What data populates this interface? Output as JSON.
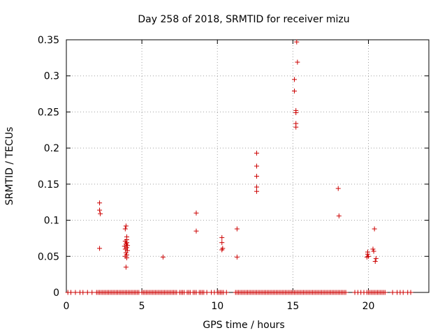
{
  "chart_data": {
    "type": "scatter",
    "title": "Day 258 of 2018, SRMTID for receiver mizu",
    "xlabel": "GPS time / hours",
    "ylabel": "SRMTID / TECUs",
    "xlim": [
      0,
      24
    ],
    "ylim": [
      0,
      0.35
    ],
    "xticks": [
      0,
      5,
      10,
      15,
      20
    ],
    "xtick_labels": [
      "0",
      "5",
      "10",
      "15",
      "20"
    ],
    "yticks": [
      0,
      0.05,
      0.1,
      0.15,
      0.2,
      0.25,
      0.3,
      0.35
    ],
    "ytick_labels": [
      "0",
      "0.05",
      "0.1",
      "0.15",
      "0.2",
      "0.25",
      "0.3",
      "0.35"
    ],
    "grid": true,
    "marker": "+",
    "color": "#cc0000",
    "series": [
      {
        "name": "SRMTID",
        "points": [
          [
            2.2,
            0.124
          ],
          [
            2.2,
            0.114
          ],
          [
            2.25,
            0.109
          ],
          [
            2.2,
            0.061
          ],
          [
            3.95,
            0.092
          ],
          [
            3.9,
            0.088
          ],
          [
            4.0,
            0.077
          ],
          [
            4.0,
            0.073
          ],
          [
            3.9,
            0.071
          ],
          [
            4.0,
            0.069
          ],
          [
            3.95,
            0.067
          ],
          [
            4.05,
            0.065
          ],
          [
            3.85,
            0.064
          ],
          [
            4.0,
            0.062
          ],
          [
            3.9,
            0.06
          ],
          [
            4.05,
            0.058
          ],
          [
            3.95,
            0.055
          ],
          [
            4.0,
            0.052
          ],
          [
            3.9,
            0.05
          ],
          [
            4.0,
            0.048
          ],
          [
            3.95,
            0.035
          ],
          [
            6.4,
            0.049
          ],
          [
            8.6,
            0.11
          ],
          [
            8.6,
            0.085
          ],
          [
            10.3,
            0.076
          ],
          [
            10.3,
            0.069
          ],
          [
            10.35,
            0.061
          ],
          [
            10.3,
            0.059
          ],
          [
            11.3,
            0.088
          ],
          [
            11.3,
            0.049
          ],
          [
            12.6,
            0.193
          ],
          [
            12.6,
            0.175
          ],
          [
            12.6,
            0.161
          ],
          [
            12.6,
            0.146
          ],
          [
            12.6,
            0.14
          ],
          [
            15.25,
            0.347
          ],
          [
            15.3,
            0.319
          ],
          [
            15.1,
            0.295
          ],
          [
            15.1,
            0.279
          ],
          [
            15.2,
            0.252
          ],
          [
            15.2,
            0.249
          ],
          [
            15.2,
            0.234
          ],
          [
            15.2,
            0.229
          ],
          [
            18.0,
            0.144
          ],
          [
            18.05,
            0.106
          ],
          [
            19.95,
            0.056
          ],
          [
            19.95,
            0.053
          ],
          [
            20.0,
            0.05
          ],
          [
            19.9,
            0.049
          ],
          [
            20.4,
            0.088
          ],
          [
            20.3,
            0.06
          ],
          [
            20.35,
            0.057
          ],
          [
            20.5,
            0.047
          ],
          [
            20.45,
            0.043
          ]
        ],
        "zero_times": [
          0.1,
          0.3,
          0.6,
          0.9,
          1.1,
          1.4,
          1.7,
          2.0,
          2.1,
          2.2,
          2.3,
          2.4,
          2.5,
          2.6,
          2.7,
          2.8,
          2.9,
          3.0,
          3.1,
          3.2,
          3.3,
          3.4,
          3.5,
          3.6,
          3.7,
          3.8,
          3.9,
          4.0,
          4.1,
          4.2,
          4.3,
          4.4,
          4.5,
          4.6,
          4.7,
          4.8,
          5.0,
          5.1,
          5.2,
          5.3,
          5.4,
          5.5,
          5.6,
          5.7,
          5.8,
          5.9,
          6.0,
          6.1,
          6.2,
          6.3,
          6.4,
          6.5,
          6.6,
          6.7,
          6.8,
          6.9,
          7.0,
          7.1,
          7.2,
          7.3,
          7.5,
          7.6,
          7.7,
          7.8,
          8.0,
          8.1,
          8.2,
          8.4,
          8.5,
          8.6,
          8.8,
          8.9,
          9.0,
          9.1,
          9.3,
          9.6,
          9.8,
          10.0,
          10.1,
          10.2,
          10.3,
          10.4,
          10.6,
          11.2,
          11.3,
          11.4,
          11.5,
          11.6,
          11.7,
          11.8,
          11.9,
          12.0,
          12.1,
          12.2,
          12.3,
          12.4,
          12.5,
          12.6,
          12.7,
          12.8,
          12.9,
          13.0,
          13.1,
          13.2,
          13.3,
          13.4,
          13.5,
          13.6,
          13.7,
          13.8,
          13.9,
          14.0,
          14.1,
          14.2,
          14.3,
          14.4,
          14.5,
          14.6,
          14.7,
          14.8,
          14.9,
          15.0,
          15.1,
          15.2,
          15.3,
          15.4,
          15.5,
          15.6,
          15.7,
          15.8,
          15.9,
          16.0,
          16.1,
          16.2,
          16.3,
          16.4,
          16.5,
          16.6,
          16.7,
          16.8,
          16.9,
          17.0,
          17.1,
          17.2,
          17.3,
          17.4,
          17.5,
          17.6,
          17.7,
          17.8,
          17.9,
          18.0,
          18.1,
          18.2,
          18.3,
          18.4,
          18.5,
          19.1,
          19.3,
          19.5,
          19.7,
          19.9,
          20.0,
          20.1,
          20.2,
          20.3,
          20.4,
          20.5,
          20.6,
          20.7,
          20.8,
          20.9,
          21.0,
          21.1,
          21.6,
          21.9,
          22.1,
          22.3,
          22.6,
          22.8
        ]
      }
    ]
  }
}
